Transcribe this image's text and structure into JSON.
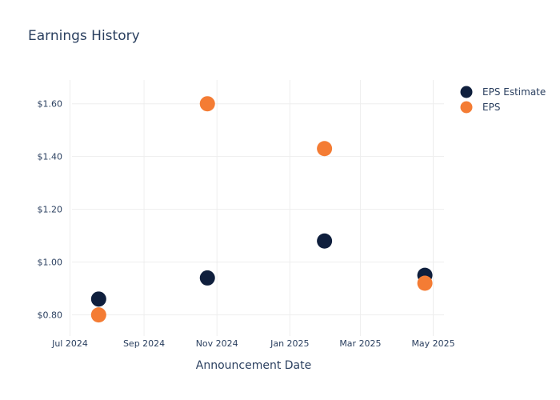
{
  "chart_data": {
    "type": "scatter",
    "title": "Earnings History",
    "xlabel": "Announcement Date",
    "ylabel": "",
    "x_ticks": [
      "Jul 2024",
      "Sep 2024",
      "Nov 2024",
      "Jan 2025",
      "Mar 2025",
      "May 2025"
    ],
    "y_ticks": [
      "$0.80",
      "$1.00",
      "$1.20",
      "$1.40",
      "$1.60"
    ],
    "ylim": [
      0.72,
      1.69
    ],
    "xlim": [
      "2024-06-26",
      "2025-05-10"
    ],
    "grid": true,
    "legend_position": "top-right",
    "series": [
      {
        "name": "EPS Estimate",
        "color": "#0f1f3d",
        "points": [
          {
            "x": "2024-07-25",
            "y": 0.86
          },
          {
            "x": "2024-10-24",
            "y": 0.94
          },
          {
            "x": "2025-01-30",
            "y": 1.08
          },
          {
            "x": "2025-04-24",
            "y": 0.95
          }
        ]
      },
      {
        "name": "EPS",
        "color": "#f47c34",
        "points": [
          {
            "x": "2024-07-25",
            "y": 0.8
          },
          {
            "x": "2024-10-24",
            "y": 1.6
          },
          {
            "x": "2025-01-30",
            "y": 1.43
          },
          {
            "x": "2025-04-24",
            "y": 0.92
          }
        ]
      }
    ]
  }
}
